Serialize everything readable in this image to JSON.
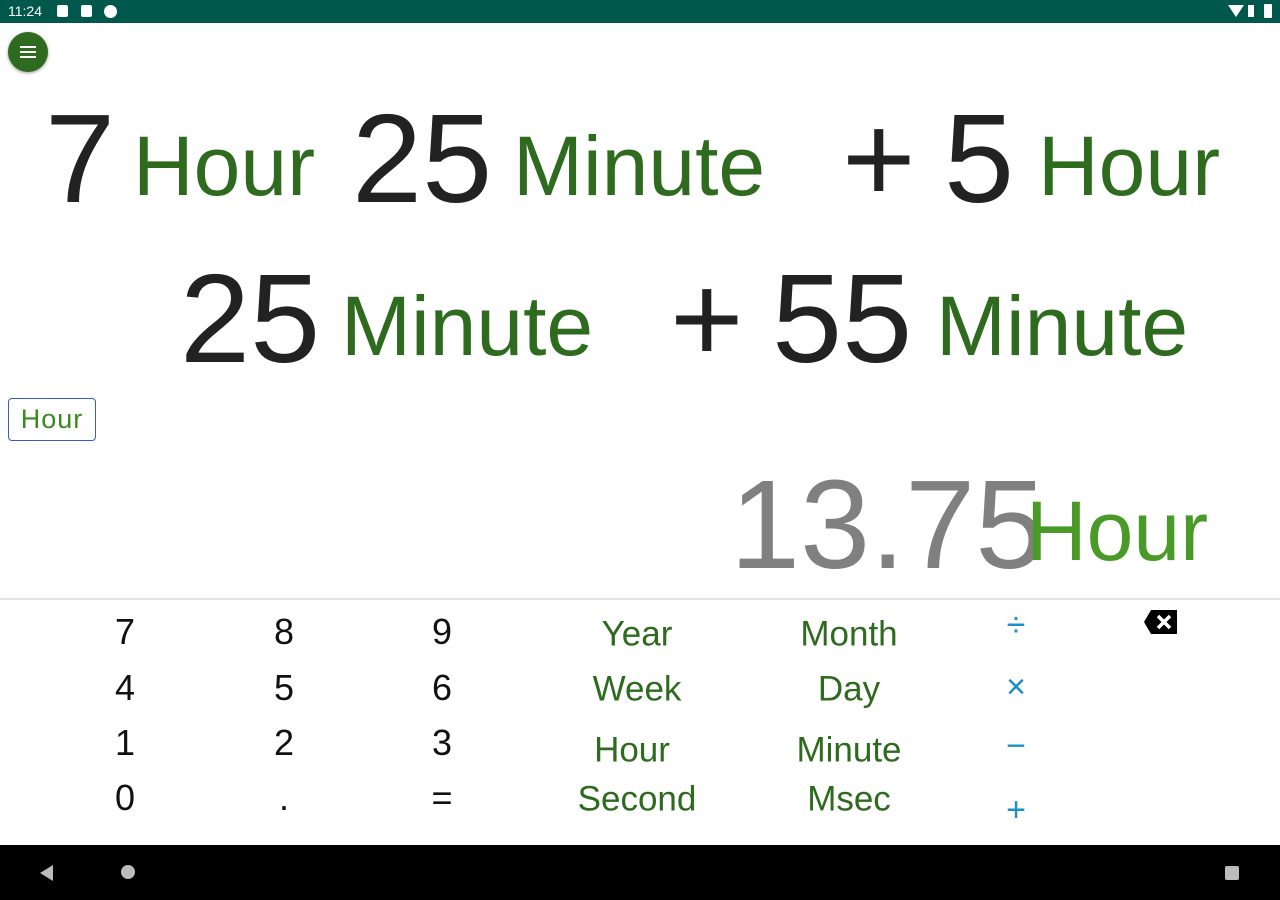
{
  "status_bar": {
    "time": "11:24"
  },
  "expression": {
    "line1": [
      {
        "t": "7",
        "k": "num"
      },
      {
        "t": "Hour",
        "k": "unit"
      },
      {
        "t": "25",
        "k": "num"
      },
      {
        "t": "Minute",
        "k": "unit"
      },
      {
        "t": "+",
        "k": "num"
      },
      {
        "t": "5",
        "k": "num"
      },
      {
        "t": "Hour",
        "k": "unit"
      }
    ],
    "line2": [
      {
        "t": "25",
        "k": "num"
      },
      {
        "t": "Minute",
        "k": "unit"
      },
      {
        "t": "+",
        "k": "num"
      },
      {
        "t": "55",
        "k": "num"
      },
      {
        "t": "Minute",
        "k": "unit"
      }
    ]
  },
  "result_unit_button": "Hour",
  "result": {
    "value": "13.75",
    "unit": "Hour"
  },
  "keypad": {
    "digits": [
      "7",
      "8",
      "9",
      "4",
      "5",
      "6",
      "1",
      "2",
      "3",
      "0",
      ".",
      "="
    ],
    "units": [
      "Year",
      "Month",
      "Week",
      "Day",
      "Hour",
      "Minute",
      "Second",
      "Msec"
    ],
    "operators": [
      "÷",
      "×",
      "−",
      "+"
    ]
  },
  "colors": {
    "status_bar": "#00574b",
    "unit_green": "#2e6b1e",
    "result_gray": "#808080",
    "operator_blue": "#1b8fc7"
  }
}
